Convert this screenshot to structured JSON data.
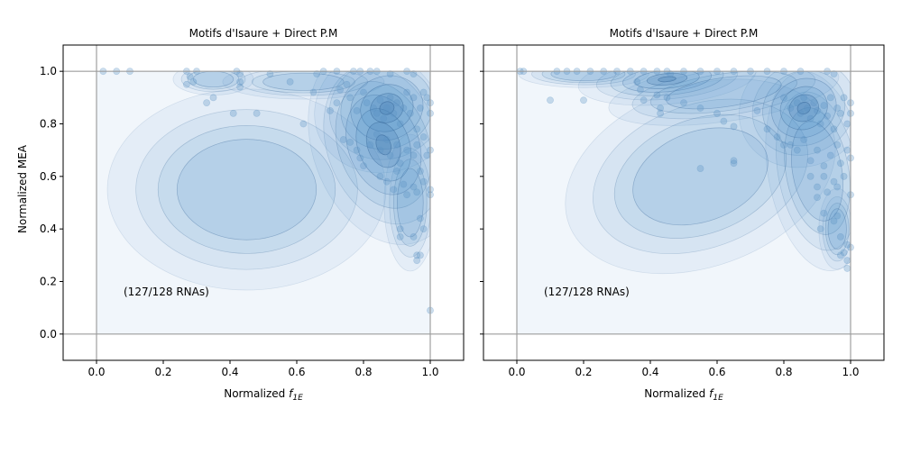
{
  "figure": {
    "panels": [
      {
        "title": "Motifs d'Isaure + Direct P.M",
        "annotation": "(127/128 RNAs)",
        "ylabel": "Normalized MEA",
        "xlabel_main": "Normalized ",
        "xlabel_italic": "f",
        "xlabel_sub": "1E"
      },
      {
        "title": "Motifs d'Isaure + Direct P.M",
        "annotation": "(127/128 RNAs)",
        "ylabel": "",
        "xlabel_main": "Normalized ",
        "xlabel_italic": "f",
        "xlabel_sub": "1E"
      }
    ]
  },
  "chart_data": [
    {
      "type": "scatter",
      "title": "Motifs d'Isaure + Direct P.M",
      "xlabel": "Normalized f_1E",
      "ylabel": "Normalized MEA",
      "xlim": [
        -0.1,
        1.1
      ],
      "ylim": [
        -0.1,
        1.1
      ],
      "xticks": [
        "0.0",
        "0.2",
        "0.4",
        "0.6",
        "0.8",
        "1.0"
      ],
      "yticks": [
        "0.0",
        "0.2",
        "0.4",
        "0.6",
        "0.8",
        "1.0"
      ],
      "reference_lines": {
        "x": [
          0,
          1
        ],
        "y": [
          0,
          1
        ]
      },
      "annotation": "(127/128 RNAs)",
      "overlay": "kernel density contours, mode near (0.87, 0.86)",
      "points": [
        [
          0.02,
          1.0
        ],
        [
          0.06,
          1.0
        ],
        [
          0.1,
          1.0
        ],
        [
          0.27,
          1.0
        ],
        [
          0.28,
          0.98
        ],
        [
          0.3,
          1.0
        ],
        [
          0.42,
          1.0
        ],
        [
          0.43,
          0.99
        ],
        [
          0.52,
          0.99
        ],
        [
          0.66,
          0.99
        ],
        [
          0.68,
          1.0
        ],
        [
          0.72,
          1.0
        ],
        [
          0.77,
          1.0
        ],
        [
          0.79,
          1.0
        ],
        [
          0.82,
          1.0
        ],
        [
          0.84,
          1.0
        ],
        [
          0.88,
          0.99
        ],
        [
          0.93,
          1.0
        ],
        [
          0.95,
          0.99
        ],
        [
          0.27,
          0.95
        ],
        [
          0.29,
          0.96
        ],
        [
          0.43,
          0.96
        ],
        [
          0.33,
          0.88
        ],
        [
          0.35,
          0.9
        ],
        [
          0.43,
          0.94
        ],
        [
          0.41,
          0.84
        ],
        [
          0.48,
          0.84
        ],
        [
          0.58,
          0.96
        ],
        [
          0.62,
          0.8
        ],
        [
          0.65,
          0.92
        ],
        [
          0.7,
          0.85
        ],
        [
          0.72,
          0.88
        ],
        [
          0.73,
          0.93
        ],
        [
          0.75,
          0.95
        ],
        [
          0.76,
          0.9
        ],
        [
          0.78,
          0.85
        ],
        [
          0.8,
          0.92
        ],
        [
          0.81,
          0.88
        ],
        [
          0.83,
          0.86
        ],
        [
          0.84,
          0.84
        ],
        [
          0.85,
          0.89
        ],
        [
          0.86,
          0.82
        ],
        [
          0.87,
          0.86
        ],
        [
          0.88,
          0.9
        ],
        [
          0.89,
          0.84
        ],
        [
          0.9,
          0.88
        ],
        [
          0.91,
          0.8
        ],
        [
          0.92,
          0.86
        ],
        [
          0.93,
          0.92
        ],
        [
          0.94,
          0.84
        ],
        [
          0.95,
          0.9
        ],
        [
          0.96,
          0.78
        ],
        [
          0.97,
          0.86
        ],
        [
          0.98,
          0.92
        ],
        [
          0.99,
          0.9
        ],
        [
          1.0,
          0.88
        ],
        [
          1.0,
          0.84
        ],
        [
          0.74,
          0.74
        ],
        [
          0.76,
          0.73
        ],
        [
          0.78,
          0.7
        ],
        [
          0.79,
          0.67
        ],
        [
          0.8,
          0.64
        ],
        [
          0.82,
          0.72
        ],
        [
          0.84,
          0.76
        ],
        [
          0.85,
          0.7
        ],
        [
          0.87,
          0.74
        ],
        [
          0.88,
          0.68
        ],
        [
          0.9,
          0.72
        ],
        [
          0.91,
          0.65
        ],
        [
          0.93,
          0.7
        ],
        [
          0.95,
          0.68
        ],
        [
          0.96,
          0.72
        ],
        [
          0.98,
          0.75
        ],
        [
          0.99,
          0.68
        ],
        [
          1.0,
          0.7
        ],
        [
          0.85,
          0.6
        ],
        [
          0.87,
          0.58
        ],
        [
          0.89,
          0.55
        ],
        [
          0.9,
          0.62
        ],
        [
          0.92,
          0.57
        ],
        [
          0.93,
          0.53
        ],
        [
          0.95,
          0.56
        ],
        [
          0.96,
          0.54
        ],
        [
          0.98,
          0.58
        ],
        [
          1.0,
          0.55
        ],
        [
          1.0,
          0.53
        ],
        [
          0.97,
          0.62
        ],
        [
          0.91,
          0.4
        ],
        [
          0.91,
          0.37
        ],
        [
          0.95,
          0.37
        ],
        [
          0.97,
          0.44
        ],
        [
          0.98,
          0.4
        ],
        [
          0.96,
          0.28
        ],
        [
          0.96,
          0.3
        ],
        [
          0.97,
          0.3
        ],
        [
          1.0,
          0.09
        ]
      ]
    },
    {
      "type": "scatter",
      "title": "Motifs d'Isaure + Direct P.M",
      "xlabel": "Normalized f_1E",
      "ylabel": "",
      "xlim": [
        -0.1,
        1.1
      ],
      "ylim": [
        -0.1,
        1.1
      ],
      "xticks": [
        "0.0",
        "0.2",
        "0.4",
        "0.6",
        "0.8",
        "1.0"
      ],
      "yticks": [
        "0.0",
        "0.2",
        "0.4",
        "0.6",
        "0.8",
        "1.0"
      ],
      "reference_lines": {
        "x": [
          0,
          1
        ],
        "y": [
          0,
          1
        ]
      },
      "annotation": "(127/128 RNAs)",
      "overlay": "kernel density contours, mode near (0.86, 0.86)",
      "points": [
        [
          0.01,
          1.0
        ],
        [
          0.02,
          1.0
        ],
        [
          0.12,
          1.0
        ],
        [
          0.15,
          1.0
        ],
        [
          0.18,
          1.0
        ],
        [
          0.22,
          1.0
        ],
        [
          0.26,
          1.0
        ],
        [
          0.3,
          1.0
        ],
        [
          0.34,
          1.0
        ],
        [
          0.38,
          1.0
        ],
        [
          0.42,
          1.0
        ],
        [
          0.45,
          1.0
        ],
        [
          0.46,
          0.99
        ],
        [
          0.5,
          1.0
        ],
        [
          0.55,
          1.0
        ],
        [
          0.6,
          1.0
        ],
        [
          0.65,
          1.0
        ],
        [
          0.7,
          1.0
        ],
        [
          0.75,
          1.0
        ],
        [
          0.8,
          1.0
        ],
        [
          0.85,
          1.0
        ],
        [
          0.93,
          1.0
        ],
        [
          0.95,
          0.99
        ],
        [
          0.1,
          0.89
        ],
        [
          0.2,
          0.89
        ],
        [
          0.36,
          0.96
        ],
        [
          0.37,
          0.93
        ],
        [
          0.38,
          0.89
        ],
        [
          0.42,
          0.91
        ],
        [
          0.43,
          0.86
        ],
        [
          0.43,
          0.84
        ],
        [
          0.45,
          0.9
        ],
        [
          0.5,
          0.88
        ],
        [
          0.55,
          0.86
        ],
        [
          0.6,
          0.84
        ],
        [
          0.62,
          0.81
        ],
        [
          0.65,
          0.79
        ],
        [
          0.72,
          0.85
        ],
        [
          0.75,
          0.78
        ],
        [
          0.78,
          0.75
        ],
        [
          0.8,
          0.72
        ],
        [
          0.8,
          0.9
        ],
        [
          0.82,
          0.86
        ],
        [
          0.84,
          0.88
        ],
        [
          0.85,
          0.84
        ],
        [
          0.86,
          0.9
        ],
        [
          0.87,
          0.86
        ],
        [
          0.88,
          0.82
        ],
        [
          0.89,
          0.88
        ],
        [
          0.9,
          0.85
        ],
        [
          0.91,
          0.8
        ],
        [
          0.92,
          0.87
        ],
        [
          0.93,
          0.83
        ],
        [
          0.94,
          0.9
        ],
        [
          0.95,
          0.78
        ],
        [
          0.96,
          0.86
        ],
        [
          0.97,
          0.84
        ],
        [
          0.98,
          0.9
        ],
        [
          0.99,
          0.8
        ],
        [
          1.0,
          0.88
        ],
        [
          1.0,
          0.84
        ],
        [
          0.65,
          0.66
        ],
        [
          0.65,
          0.65
        ],
        [
          0.55,
          0.63
        ],
        [
          0.82,
          0.72
        ],
        [
          0.84,
          0.7
        ],
        [
          0.86,
          0.74
        ],
        [
          0.88,
          0.66
        ],
        [
          0.9,
          0.7
        ],
        [
          0.92,
          0.64
        ],
        [
          0.94,
          0.68
        ],
        [
          0.96,
          0.72
        ],
        [
          0.97,
          0.65
        ],
        [
          0.99,
          0.7
        ],
        [
          1.0,
          0.67
        ],
        [
          0.88,
          0.6
        ],
        [
          0.9,
          0.56
        ],
        [
          0.92,
          0.6
        ],
        [
          0.93,
          0.54
        ],
        [
          0.95,
          0.58
        ],
        [
          0.96,
          0.56
        ],
        [
          0.98,
          0.6
        ],
        [
          1.0,
          0.53
        ],
        [
          0.9,
          0.52
        ],
        [
          0.92,
          0.46
        ],
        [
          0.95,
          0.43
        ],
        [
          0.96,
          0.45
        ],
        [
          0.91,
          0.4
        ],
        [
          0.97,
          0.37
        ],
        [
          0.99,
          0.34
        ],
        [
          1.0,
          0.33
        ],
        [
          0.97,
          0.3
        ],
        [
          0.98,
          0.31
        ],
        [
          0.99,
          0.28
        ],
        [
          0.99,
          0.25
        ]
      ]
    }
  ]
}
